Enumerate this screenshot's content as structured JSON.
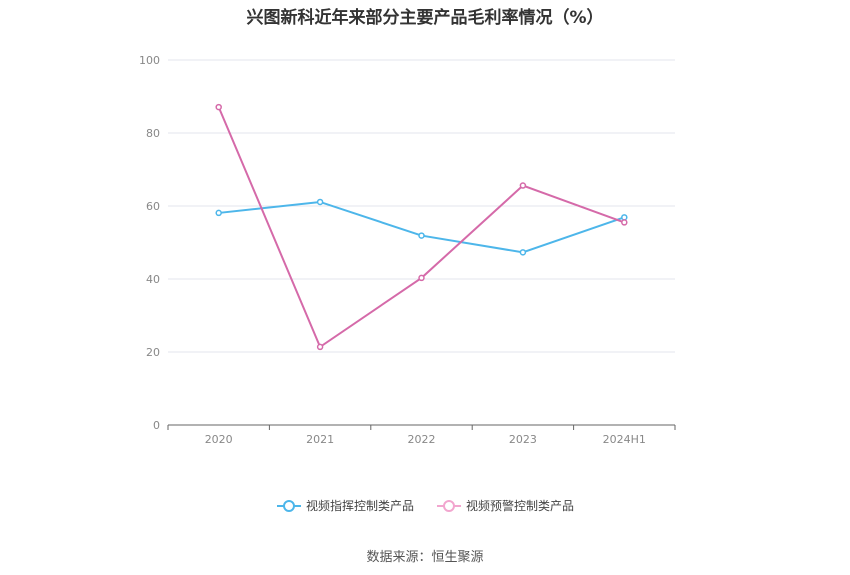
{
  "chart_data": {
    "type": "line",
    "title": "兴图新科近年来部分主要产品毛利率情况（%）",
    "categories": [
      "2020",
      "2021",
      "2022",
      "2023",
      "2024H1"
    ],
    "series": [
      {
        "name": "视频指挥控制类产品",
        "color": "#4db6ea",
        "values": [
          58.1,
          61.1,
          51.9,
          47.3,
          56.9
        ]
      },
      {
        "name": "视频预警控制类产品",
        "color": "#d56aa9",
        "values": [
          87.1,
          21.4,
          40.3,
          65.6,
          55.5
        ]
      }
    ],
    "ylim": [
      0,
      100
    ],
    "yticks": [
      0,
      20,
      40,
      60,
      80,
      100
    ],
    "grid": true,
    "legend_position": "bottom"
  },
  "source": "数据来源：恒生聚源"
}
